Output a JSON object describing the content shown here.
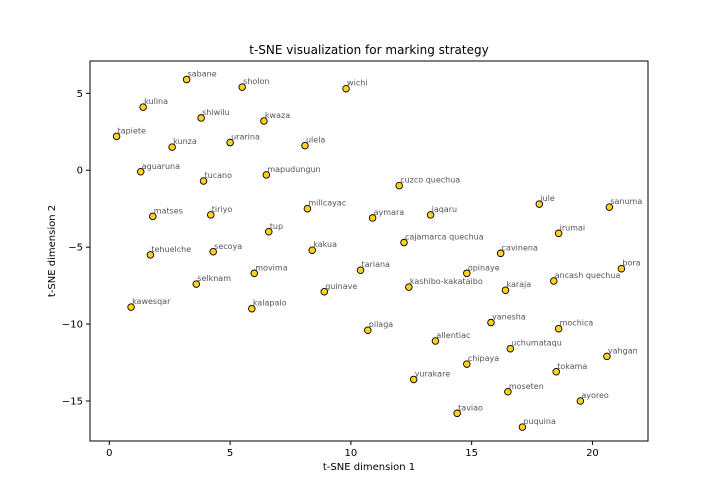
{
  "chart_data": {
    "type": "scatter",
    "title": "t-SNE visualization for marking strategy",
    "xlabel": "t-SNE dimension 1",
    "ylabel": "t-SNE dimension 2",
    "xlim": [
      -0.8,
      22.3
    ],
    "ylim": [
      -17.6,
      7.1
    ],
    "xticks": [
      0,
      5,
      10,
      15,
      20
    ],
    "yticks": [
      5,
      0,
      -5,
      -10,
      -15
    ],
    "grid": false,
    "marker_color": "#ffd21f",
    "marker_edge": "#000000",
    "points": [
      {
        "label": "sabane",
        "x": 3.2,
        "y": 5.9
      },
      {
        "label": "sholon",
        "x": 5.5,
        "y": 5.4
      },
      {
        "label": "wichi",
        "x": 9.8,
        "y": 5.3
      },
      {
        "label": "kulina",
        "x": 1.4,
        "y": 4.1
      },
      {
        "label": "shiwilu",
        "x": 3.8,
        "y": 3.4
      },
      {
        "label": "kwaza",
        "x": 6.4,
        "y": 3.2
      },
      {
        "label": "tapiete",
        "x": 0.3,
        "y": 2.2
      },
      {
        "label": "urarina",
        "x": 5.0,
        "y": 1.8
      },
      {
        "label": "kunza",
        "x": 2.6,
        "y": 1.5
      },
      {
        "label": "ulela",
        "x": 8.1,
        "y": 1.6
      },
      {
        "label": "aguaruna",
        "x": 1.3,
        "y": -0.1
      },
      {
        "label": "mapudungun",
        "x": 6.5,
        "y": -0.3
      },
      {
        "label": "tucano",
        "x": 3.9,
        "y": -0.7
      },
      {
        "label": "cuzco quechua",
        "x": 12.0,
        "y": -1.0
      },
      {
        "label": "jule",
        "x": 17.8,
        "y": -2.2
      },
      {
        "label": "sanuma",
        "x": 20.7,
        "y": -2.4
      },
      {
        "label": "millcayac",
        "x": 8.2,
        "y": -2.5
      },
      {
        "label": "matses",
        "x": 1.8,
        "y": -3.0
      },
      {
        "label": "tiriyo",
        "x": 4.2,
        "y": -2.9
      },
      {
        "label": "aymara",
        "x": 10.9,
        "y": -3.1
      },
      {
        "label": "jaqaru",
        "x": 13.3,
        "y": -2.9
      },
      {
        "label": "irumai",
        "x": 18.6,
        "y": -4.1
      },
      {
        "label": "tup",
        "x": 6.6,
        "y": -4.0
      },
      {
        "label": "cajamarca quechua",
        "x": 12.2,
        "y": -4.7
      },
      {
        "label": "kakua",
        "x": 8.4,
        "y": -5.2
      },
      {
        "label": "secoya",
        "x": 4.3,
        "y": -5.3
      },
      {
        "label": "tehuelche",
        "x": 1.7,
        "y": -5.5
      },
      {
        "label": "cavinena",
        "x": 16.2,
        "y": -5.4
      },
      {
        "label": "bora",
        "x": 21.2,
        "y": -6.4
      },
      {
        "label": "tariana",
        "x": 10.4,
        "y": -6.5
      },
      {
        "label": "movima",
        "x": 6.0,
        "y": -6.7
      },
      {
        "label": "opinaye",
        "x": 14.8,
        "y": -6.7
      },
      {
        "label": "ancash quechua",
        "x": 18.4,
        "y": -7.2
      },
      {
        "label": "selknam",
        "x": 3.6,
        "y": -7.4
      },
      {
        "label": "kashibo-kakataibo",
        "x": 12.4,
        "y": -7.6
      },
      {
        "label": "karaja",
        "x": 16.4,
        "y": -7.8
      },
      {
        "label": "guinave",
        "x": 8.9,
        "y": -7.9
      },
      {
        "label": "kawesqar",
        "x": 0.9,
        "y": -8.9
      },
      {
        "label": "kalapalo",
        "x": 5.9,
        "y": -9.0
      },
      {
        "label": "yanesha",
        "x": 15.8,
        "y": -9.9
      },
      {
        "label": "pilaga",
        "x": 10.7,
        "y": -10.4
      },
      {
        "label": "mochica",
        "x": 18.6,
        "y": -10.3
      },
      {
        "label": "allentiac",
        "x": 13.5,
        "y": -11.1
      },
      {
        "label": "uchumataqu",
        "x": 16.6,
        "y": -11.6
      },
      {
        "label": "yahgan",
        "x": 20.6,
        "y": -12.1
      },
      {
        "label": "chipaya",
        "x": 14.8,
        "y": -12.6
      },
      {
        "label": "tokama",
        "x": 18.5,
        "y": -13.1
      },
      {
        "label": "yurakare",
        "x": 12.6,
        "y": -13.6
      },
      {
        "label": "moseten",
        "x": 16.5,
        "y": -14.4
      },
      {
        "label": "ayoreo",
        "x": 19.5,
        "y": -15.0
      },
      {
        "label": "taviao",
        "x": 14.4,
        "y": -15.8
      },
      {
        "label": "puquina",
        "x": 17.1,
        "y": -16.7
      }
    ]
  }
}
